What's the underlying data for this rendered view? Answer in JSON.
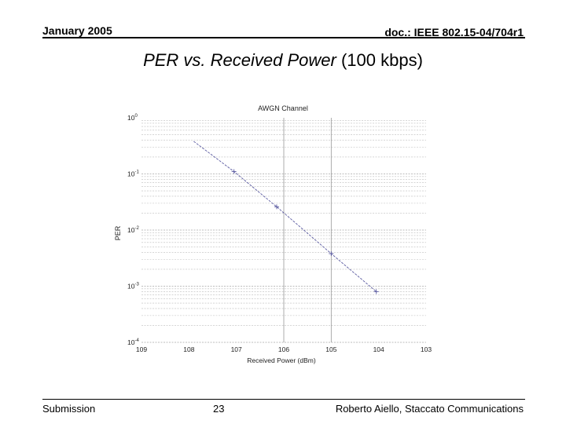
{
  "header": {
    "date": "January 2005",
    "doc_id": "doc.: IEEE 802.15-04/704r1"
  },
  "slide": {
    "title_italic": "PER vs. Received Power",
    "title_rest": " (100 kbps)"
  },
  "footer": {
    "left": "Submission",
    "page": "23",
    "author": "Roberto Aiello, Staccato Communications"
  },
  "chart_data": {
    "type": "line",
    "title": "AWGN Channel",
    "xlabel": "Received Power (dBm)",
    "ylabel": "PER",
    "x_axis": "reversed",
    "xlim": [
      -109,
      -103
    ],
    "x_ticks": [
      -109,
      -108,
      -107,
      -106,
      -105,
      -104,
      -103
    ],
    "x_tick_labels": [
      "109",
      "108",
      "107",
      "106",
      "105",
      "104",
      "103"
    ],
    "y_scale": "log",
    "ylim": [
      0.0001,
      1
    ],
    "y_ticks": [
      {
        "value": 1,
        "base": "10",
        "exp": "0"
      },
      {
        "value": 0.1,
        "base": "10",
        "exp": "-1"
      },
      {
        "value": 0.01,
        "base": "10",
        "exp": "-2"
      },
      {
        "value": 0.001,
        "base": "10",
        "exp": "-3"
      },
      {
        "value": 0.0001,
        "base": "10",
        "exp": "-4"
      }
    ],
    "vertical_reference_lines": [
      -106.0,
      -105.0
    ],
    "grid": "horizontal log minor gridlines",
    "series": [
      {
        "x": [
          -107.9,
          -107.05,
          -106.15,
          -105.0,
          -104.05
        ],
        "y": [
          0.38,
          0.11,
          0.026,
          0.0038,
          0.0008
        ],
        "markers": [
          false,
          true,
          true,
          true,
          true
        ]
      }
    ],
    "colors": {
      "line": "#5a5aa0",
      "grid": "#bdbdbd",
      "axis_text": "#222222"
    }
  }
}
